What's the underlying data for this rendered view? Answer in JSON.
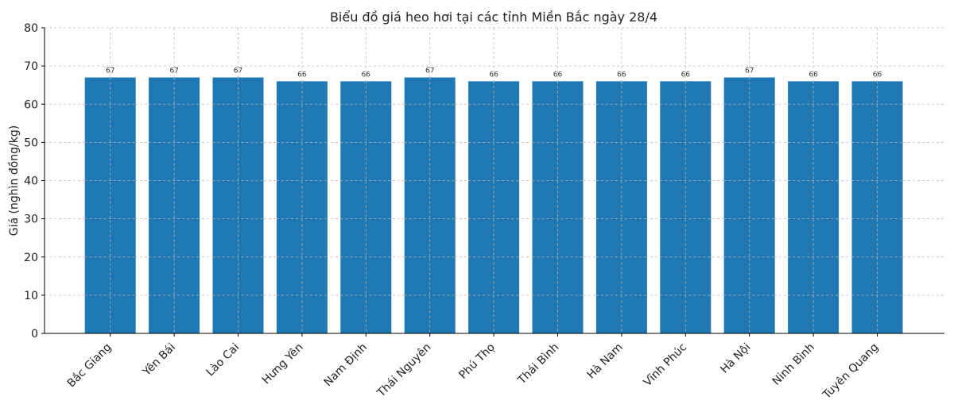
{
  "chart_data": {
    "type": "bar",
    "title": "Biểu đồ giá heo hơi tại các tỉnh Miền Bắc ngày 28/4",
    "xlabel": "",
    "ylabel": "Giá (nghìn đồng/kg)",
    "ylim": [
      0,
      80
    ],
    "yticks": [
      0,
      10,
      20,
      30,
      40,
      50,
      60,
      70,
      80
    ],
    "grid": true,
    "categories": [
      "Bắc Giang",
      "Yên Bái",
      "Lào Cai",
      "Hưng Yên",
      "Nam Định",
      "Thái Nguyên",
      "Phú Thọ",
      "Thái Bình",
      "Hà Nam",
      "Vĩnh Phúc",
      "Hà Nội",
      "Ninh Bình",
      "Tuyên Quang"
    ],
    "values": [
      67,
      67,
      67,
      66,
      66,
      67,
      66,
      66,
      66,
      66,
      67,
      66,
      66
    ],
    "data_labels": [
      "67",
      "67",
      "67",
      "66",
      "66",
      "67",
      "66",
      "66",
      "66",
      "66",
      "67",
      "66",
      "66"
    ],
    "bar_color": "#1f77b4"
  }
}
